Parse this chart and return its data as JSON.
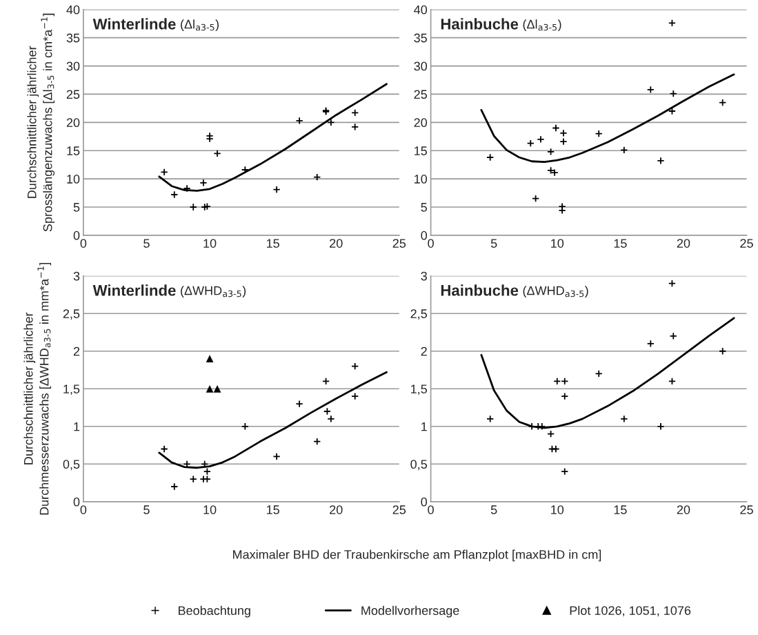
{
  "chart_data": [
    {
      "type": "scatter",
      "title": "Winterlinde",
      "subtitle": "(Δl$_{a3-5}$)",
      "ylabel": "Durchschnittlicher jährlicher\nSprosslängenzuwachs [Δl$_{3-5}$ in cm*a$^{−1}$]",
      "xlim": [
        0,
        25
      ],
      "ylim": [
        0,
        40
      ],
      "xticks": [
        0,
        5,
        10,
        15,
        20,
        25
      ],
      "yticks": [
        0,
        5,
        10,
        15,
        20,
        25,
        30,
        35,
        40
      ],
      "grid": "y",
      "legend": "bottom",
      "series": [
        {
          "name": "Beobachtung",
          "marker": "cross",
          "color": "#000000",
          "x": [
            6.4,
            7.2,
            8.2,
            8.7,
            9.5,
            9.6,
            9.8,
            10.0,
            10.0,
            10.6,
            12.8,
            15.3,
            17.1,
            18.5,
            19.2,
            19.2,
            19.6,
            21.5,
            21.5
          ],
          "values": [
            11.2,
            7.2,
            8.3,
            5.0,
            9.3,
            5.0,
            5.1,
            17.6,
            17.1,
            14.5,
            11.6,
            8.1,
            20.3,
            10.3,
            22.1,
            21.9,
            20.0,
            21.7,
            19.2
          ]
        },
        {
          "name": "Modellvorhersage",
          "type": "line",
          "marker": "none",
          "line_style": "solid",
          "color": "#000000",
          "x": [
            6,
            7,
            8,
            9,
            10,
            11,
            12,
            14,
            16,
            18,
            20,
            22,
            24
          ],
          "values": [
            10.4,
            8.7,
            8.0,
            7.9,
            8.2,
            9.1,
            10.2,
            12.6,
            15.3,
            18.3,
            21.3,
            24.0,
            26.8
          ]
        }
      ]
    },
    {
      "type": "scatter",
      "title": "Hainbuche",
      "subtitle": "(Δl$_{a3-5}$)",
      "xlim": [
        0,
        25
      ],
      "ylim": [
        0,
        40
      ],
      "xticks": [
        0,
        5,
        10,
        15,
        20,
        25
      ],
      "yticks": [
        0,
        5,
        10,
        15,
        20,
        25,
        30,
        35,
        40
      ],
      "grid": "y",
      "legend": false,
      "series": [
        {
          "marker": "cross",
          "color": "#000000",
          "x": [
            4.7,
            7.9,
            8.3,
            8.7,
            9.5,
            9.5,
            9.8,
            9.9,
            10.5,
            10.5,
            10.4,
            10.4,
            13.3,
            15.3,
            17.4,
            18.2,
            19.1,
            19.2,
            19.1,
            23.1
          ],
          "values": [
            13.8,
            16.3,
            6.5,
            17.0,
            14.8,
            11.5,
            11.1,
            19.0,
            18.1,
            16.6,
            5.1,
            4.4,
            18.0,
            15.1,
            25.8,
            13.2,
            37.6,
            25.1,
            22.0,
            23.5
          ]
        },
        {
          "type": "line",
          "marker": "none",
          "line_style": "solid",
          "color": "#000000",
          "x": [
            4,
            5,
            6,
            7,
            8,
            9,
            10,
            11,
            12,
            14,
            16,
            18,
            20,
            22,
            24
          ],
          "values": [
            22.2,
            17.6,
            15.1,
            13.8,
            13.1,
            13.0,
            13.3,
            13.8,
            14.6,
            16.5,
            18.8,
            21.2,
            23.8,
            26.3,
            28.5
          ]
        }
      ]
    },
    {
      "type": "scatter",
      "title": "Winterlinde",
      "subtitle": "(ΔWHD$_{a3-5}$)",
      "ylabel": "Durchschnittlicher jährlicher\nDurchmesserzuwachs [ΔWHD$_{a3-5}$ in mm*a$^{−1}$]",
      "xlabel": "Maximaler BHD der Traubenkirsche am Pflanzplot [maxBHD in cm]",
      "xlim": [
        0,
        25
      ],
      "ylim": [
        0,
        3
      ],
      "xticks": [
        0,
        5,
        10,
        15,
        20,
        25
      ],
      "yticks": [
        0,
        {
          "value": 0.5,
          "label": "0,5"
        },
        1,
        {
          "value": 1.5,
          "label": "1,5"
        },
        2,
        {
          "value": 2.5,
          "label": "2,5"
        },
        3
      ],
      "grid": "y",
      "legend": "bottom",
      "series": [
        {
          "marker": "cross",
          "color": "#000000",
          "x": [
            6.4,
            7.2,
            8.2,
            8.7,
            9.5,
            9.6,
            9.8,
            9.8,
            12.8,
            15.3,
            17.1,
            18.5,
            19.2,
            19.3,
            19.6,
            21.5,
            21.5
          ],
          "values": [
            0.7,
            0.2,
            0.5,
            0.3,
            0.3,
            0.5,
            0.3,
            0.4,
            1.0,
            0.6,
            1.3,
            0.8,
            1.6,
            1.2,
            1.1,
            1.8,
            1.4
          ]
        },
        {
          "type": "line",
          "marker": "none",
          "line_style": "solid",
          "color": "#000000",
          "x": [
            6,
            7,
            8,
            9,
            10,
            11,
            12,
            14,
            16,
            18,
            20,
            22,
            24
          ],
          "values": [
            0.65,
            0.52,
            0.46,
            0.45,
            0.47,
            0.52,
            0.6,
            0.8,
            0.98,
            1.18,
            1.37,
            1.55,
            1.72
          ]
        },
        {
          "name": "Plot 1026, 1051, 1076",
          "marker": "triangle",
          "color": "#000000",
          "x": [
            10.0,
            10.0,
            10.6
          ],
          "values": [
            1.9,
            1.5,
            1.5
          ]
        }
      ]
    },
    {
      "type": "scatter",
      "title": "Hainbuche",
      "subtitle": "(ΔWHD$_{a3-5}$)",
      "xlim": [
        0,
        25
      ],
      "ylim": [
        0,
        3
      ],
      "xticks": [
        0,
        5,
        10,
        15,
        20,
        25
      ],
      "yticks": [
        0,
        {
          "value": 0.5,
          "label": "0,5"
        },
        1,
        {
          "value": 1.5,
          "label": "1,5"
        },
        2,
        {
          "value": 2.5,
          "label": "2,5"
        },
        3
      ],
      "grid": "y",
      "legend": false,
      "series": [
        {
          "marker": "cross",
          "color": "#000000",
          "x": [
            4.7,
            8.0,
            8.5,
            8.8,
            9.5,
            9.6,
            9.9,
            10.0,
            10.6,
            10.6,
            10.6,
            13.3,
            15.3,
            17.4,
            18.2,
            19.1,
            19.2,
            19.1,
            23.1
          ],
          "values": [
            1.1,
            1.0,
            1.0,
            1.0,
            0.9,
            0.7,
            0.7,
            1.6,
            1.6,
            1.4,
            0.4,
            1.7,
            1.1,
            2.1,
            1.0,
            2.9,
            2.2,
            1.6,
            2.0
          ]
        },
        {
          "type": "line",
          "marker": "none",
          "line_style": "solid",
          "color": "#000000",
          "x": [
            4,
            5,
            6,
            7,
            8,
            9,
            10,
            11,
            12,
            14,
            16,
            18,
            20,
            22,
            24
          ],
          "values": [
            1.95,
            1.48,
            1.21,
            1.06,
            1.0,
            0.98,
            1.0,
            1.04,
            1.1,
            1.27,
            1.47,
            1.7,
            1.95,
            2.2,
            2.44
          ]
        }
      ]
    }
  ]
}
